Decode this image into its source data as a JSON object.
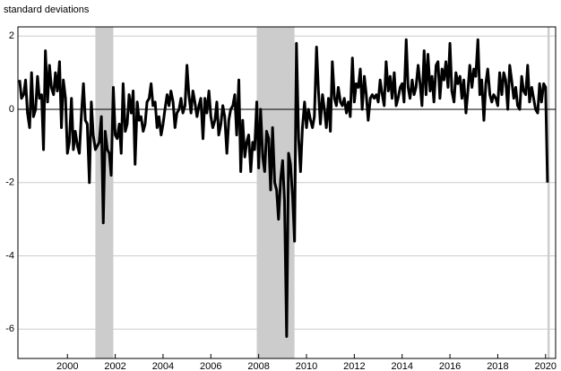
{
  "chart_data": {
    "type": "line",
    "y_label": "standard deviations",
    "xlim": [
      1997.93,
      2020.42
    ],
    "ylim": [
      -6.8,
      2.25
    ],
    "xticks": [
      2000,
      2002,
      2004,
      2006,
      2008,
      2010,
      2012,
      2014,
      2016,
      2018,
      2020
    ],
    "yticks": [
      -6,
      -4,
      -2,
      0,
      2
    ],
    "grid": true,
    "shaded_ranges": [
      [
        2001.17,
        2001.92
      ],
      [
        2007.92,
        2009.5
      ],
      [
        2020.08,
        2020.17
      ]
    ],
    "shade_color": "#cccccc",
    "series": [
      {
        "color": "#000000",
        "x": [
          1998,
          1998.08,
          1998.17,
          1998.25,
          1998.33,
          1998.42,
          1998.5,
          1998.58,
          1998.67,
          1998.75,
          1998.83,
          1998.92,
          1999,
          1999.08,
          1999.17,
          1999.25,
          1999.33,
          1999.42,
          1999.5,
          1999.58,
          1999.67,
          1999.75,
          1999.83,
          1999.92,
          2000,
          2000.08,
          2000.17,
          2000.25,
          2000.33,
          2000.42,
          2000.5,
          2000.58,
          2000.67,
          2000.75,
          2000.83,
          2000.92,
          2001,
          2001.08,
          2001.17,
          2001.25,
          2001.33,
          2001.42,
          2001.5,
          2001.58,
          2001.67,
          2001.75,
          2001.83,
          2001.92,
          2002,
          2002.08,
          2002.17,
          2002.25,
          2002.33,
          2002.42,
          2002.5,
          2002.58,
          2002.67,
          2002.75,
          2002.83,
          2002.92,
          2003,
          2003.08,
          2003.17,
          2003.25,
          2003.33,
          2003.42,
          2003.5,
          2003.58,
          2003.67,
          2003.75,
          2003.83,
          2003.92,
          2004,
          2004.08,
          2004.17,
          2004.25,
          2004.33,
          2004.42,
          2004.5,
          2004.58,
          2004.67,
          2004.75,
          2004.83,
          2004.92,
          2005,
          2005.08,
          2005.17,
          2005.25,
          2005.33,
          2005.42,
          2005.5,
          2005.58,
          2005.67,
          2005.75,
          2005.83,
          2005.92,
          2006,
          2006.08,
          2006.17,
          2006.25,
          2006.33,
          2006.42,
          2006.5,
          2006.58,
          2006.67,
          2006.75,
          2006.83,
          2006.92,
          2007,
          2007.08,
          2007.17,
          2007.25,
          2007.33,
          2007.42,
          2007.5,
          2007.58,
          2007.67,
          2007.75,
          2007.83,
          2007.92,
          2008,
          2008.08,
          2008.17,
          2008.25,
          2008.33,
          2008.42,
          2008.5,
          2008.58,
          2008.67,
          2008.75,
          2008.83,
          2008.92,
          2009,
          2009.08,
          2009.17,
          2009.25,
          2009.33,
          2009.42,
          2009.5,
          2009.58,
          2009.67,
          2009.75,
          2009.83,
          2009.92,
          2010,
          2010.08,
          2010.17,
          2010.25,
          2010.33,
          2010.42,
          2010.5,
          2010.58,
          2010.67,
          2010.75,
          2010.83,
          2010.92,
          2011,
          2011.08,
          2011.17,
          2011.25,
          2011.33,
          2011.42,
          2011.5,
          2011.58,
          2011.67,
          2011.75,
          2011.83,
          2011.92,
          2012,
          2012.08,
          2012.17,
          2012.25,
          2012.33,
          2012.42,
          2012.5,
          2012.58,
          2012.67,
          2012.75,
          2012.83,
          2012.92,
          2013,
          2013.08,
          2013.17,
          2013.25,
          2013.33,
          2013.42,
          2013.5,
          2013.58,
          2013.67,
          2013.75,
          2013.83,
          2013.92,
          2014,
          2014.08,
          2014.17,
          2014.25,
          2014.33,
          2014.42,
          2014.5,
          2014.58,
          2014.67,
          2014.75,
          2014.83,
          2014.92,
          2015,
          2015.08,
          2015.17,
          2015.25,
          2015.33,
          2015.42,
          2015.5,
          2015.58,
          2015.67,
          2015.75,
          2015.83,
          2015.92,
          2016,
          2016.08,
          2016.17,
          2016.25,
          2016.33,
          2016.42,
          2016.5,
          2016.58,
          2016.67,
          2016.75,
          2016.83,
          2016.92,
          2017,
          2017.08,
          2017.17,
          2017.25,
          2017.33,
          2017.42,
          2017.5,
          2017.58,
          2017.67,
          2017.75,
          2017.83,
          2017.92,
          2018,
          2018.08,
          2018.17,
          2018.25,
          2018.33,
          2018.42,
          2018.5,
          2018.58,
          2018.67,
          2018.75,
          2018.83,
          2018.92,
          2019,
          2019.08,
          2019.17,
          2019.25,
          2019.33,
          2019.42,
          2019.5,
          2019.58,
          2019.67,
          2019.75,
          2019.83,
          2019.92,
          2020,
          2020.08
        ],
        "values": [
          0.8,
          0.3,
          0.4,
          0.8,
          -0.1,
          -0.5,
          1.0,
          -0.2,
          0.0,
          0.9,
          0.3,
          0.4,
          -1.1,
          1.6,
          0.2,
          1.2,
          0.6,
          0.4,
          1.0,
          0.5,
          1.3,
          -0.5,
          0.8,
          0.3,
          -1.2,
          -0.9,
          0.3,
          -1.1,
          -0.6,
          -1.0,
          -1.2,
          -0.2,
          0.7,
          -0.3,
          -0.4,
          -2.0,
          0.2,
          -0.7,
          -1.1,
          -1.0,
          -0.9,
          -0.2,
          -3.1,
          -0.6,
          -1.1,
          -1.2,
          -1.8,
          0.6,
          -0.7,
          -0.8,
          -0.4,
          -1.2,
          0.7,
          -0.6,
          -0.4,
          0.4,
          -0.1,
          0.5,
          -1.5,
          0.2,
          -0.3,
          -0.2,
          -0.6,
          -0.4,
          0.2,
          0.3,
          0.7,
          0.1,
          0.2,
          -0.5,
          -0.2,
          -0.7,
          -0.4,
          0.0,
          0.4,
          0.1,
          0.5,
          0.2,
          -0.5,
          -0.1,
          0.0,
          0.3,
          -0.1,
          0.1,
          1.2,
          0.4,
          -0.1,
          0.5,
          0.2,
          -0.2,
          0.1,
          0.3,
          -0.8,
          0.3,
          -0.1,
          0.5,
          -0.2,
          -0.5,
          -0.3,
          0.2,
          -0.7,
          -0.4,
          0.1,
          -0.2,
          -1.2,
          -0.3,
          0.0,
          0.1,
          0.4,
          -0.7,
          0.8,
          -1.7,
          -0.3,
          -1.3,
          -0.9,
          -0.7,
          -1.7,
          -0.9,
          -1.1,
          0.2,
          -1.6,
          0.0,
          -1.3,
          -1.7,
          -0.6,
          -0.8,
          -2.2,
          -0.5,
          -2.0,
          -2.2,
          -3.0,
          -1.9,
          -1.4,
          -2.5,
          -6.2,
          -1.2,
          -1.5,
          -2.4,
          -3.6,
          1.8,
          -0.8,
          -1.7,
          -0.5,
          0.2,
          -0.5,
          0.0,
          -0.3,
          -0.5,
          -0.2,
          1.7,
          0.5,
          -0.4,
          0.4,
          0.0,
          -0.5,
          0.3,
          -0.6,
          1.3,
          0.3,
          0.1,
          0.6,
          0.2,
          0.1,
          0.3,
          -0.1,
          0.2,
          -0.2,
          1.4,
          0.2,
          0.7,
          0.6,
          1.1,
          0.0,
          0.9,
          0.4,
          -0.3,
          0.3,
          0.4,
          0.3,
          0.4,
          0.2,
          0.8,
          0.4,
          0.1,
          1.3,
          0.5,
          0.9,
          0.3,
          1.0,
          0.1,
          0.3,
          0.6,
          0.7,
          0.2,
          1.9,
          0.6,
          0.3,
          0.8,
          0.4,
          0.6,
          1.2,
          0.7,
          0.1,
          1.6,
          0.4,
          1.5,
          0.5,
          0.9,
          0.2,
          1.2,
          1.3,
          0.3,
          1.1,
          0.8,
          1.3,
          0.6,
          1.8,
          0.5,
          0.2,
          1.0,
          0.7,
          0.9,
          0.3,
          0.8,
          -0.1,
          0.5,
          1.2,
          0.6,
          1.1,
          0.9,
          1.9,
          0.4,
          0.8,
          -0.3,
          0.7,
          1.1,
          0.4,
          0.2,
          0.4,
          0.3,
          0.1,
          1.0,
          0.4,
          1.0,
          0.8,
          0.0,
          1.2,
          0.8,
          0.3,
          0.6,
          0.1,
          0.0,
          0.9,
          0.5,
          0.4,
          1.2,
          0.2,
          0.6,
          0.3,
          0.0,
          -0.1,
          0.7,
          0.2,
          0.7,
          0.6,
          -2.0
        ]
      }
    ]
  }
}
